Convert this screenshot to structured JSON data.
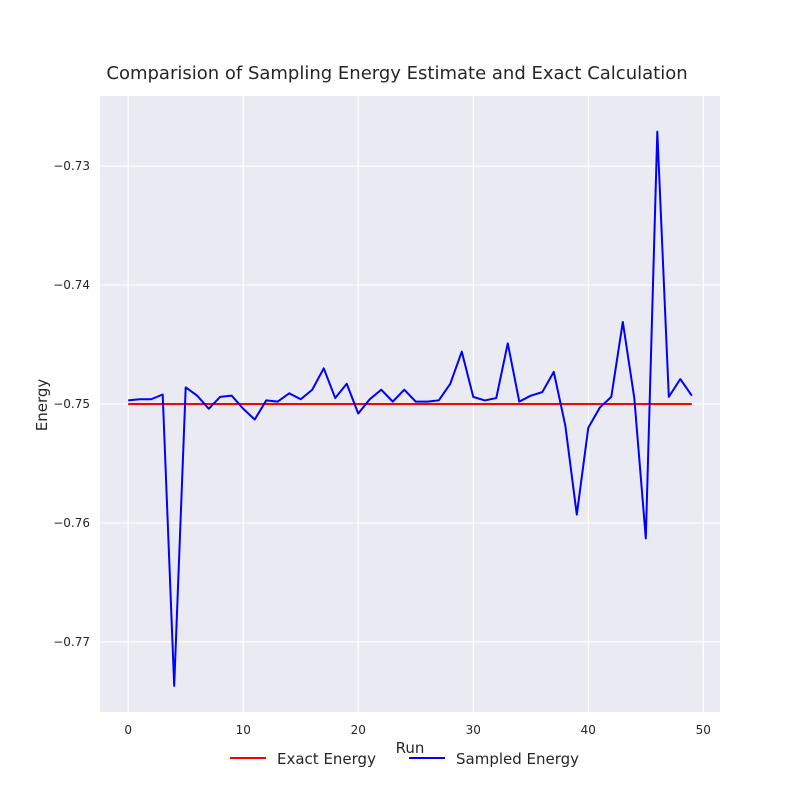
{
  "chart_data": {
    "type": "line",
    "title": "Comparision of Sampling Energy Estimate and Exact Calculation",
    "xlabel": "Run",
    "ylabel": "Energy",
    "xlim": [
      -2.45,
      51.45
    ],
    "ylim": [
      -0.7759,
      -0.7241
    ],
    "xticks": [
      0,
      10,
      20,
      30,
      40,
      50
    ],
    "yticks": [
      -0.77,
      -0.76,
      -0.75,
      -0.74,
      -0.73
    ],
    "ytick_labels": [
      "−0.77",
      "−0.76",
      "−0.75",
      "−0.74",
      "−0.73"
    ],
    "grid": true,
    "legend_position": "bottom-center",
    "x": [
      0,
      1,
      2,
      3,
      4,
      5,
      6,
      7,
      8,
      9,
      10,
      11,
      12,
      13,
      14,
      15,
      16,
      17,
      18,
      19,
      20,
      21,
      22,
      23,
      24,
      25,
      26,
      27,
      28,
      29,
      30,
      31,
      32,
      33,
      34,
      35,
      36,
      37,
      38,
      39,
      40,
      41,
      42,
      43,
      44,
      45,
      46,
      47,
      48,
      49
    ],
    "series": [
      {
        "name": "Exact Energy",
        "color": "#ff0000",
        "values": [
          -0.75,
          -0.75,
          -0.75,
          -0.75,
          -0.75,
          -0.75,
          -0.75,
          -0.75,
          -0.75,
          -0.75,
          -0.75,
          -0.75,
          -0.75,
          -0.75,
          -0.75,
          -0.75,
          -0.75,
          -0.75,
          -0.75,
          -0.75,
          -0.75,
          -0.75,
          -0.75,
          -0.75,
          -0.75,
          -0.75,
          -0.75,
          -0.75,
          -0.75,
          -0.75,
          -0.75,
          -0.75,
          -0.75,
          -0.75,
          -0.75,
          -0.75,
          -0.75,
          -0.75,
          -0.75,
          -0.75,
          -0.75,
          -0.75,
          -0.75,
          -0.75,
          -0.75,
          -0.75,
          -0.75,
          -0.75,
          -0.75,
          -0.75
        ]
      },
      {
        "name": "Sampled Energy",
        "color": "#0000ff",
        "values": [
          -0.7497,
          -0.7496,
          -0.7496,
          -0.7492,
          -0.7737,
          -0.7486,
          -0.7493,
          -0.7504,
          -0.7494,
          -0.7493,
          -0.7504,
          -0.7513,
          -0.7497,
          -0.7498,
          -0.7491,
          -0.7496,
          -0.7488,
          -0.747,
          -0.7495,
          -0.7483,
          -0.7508,
          -0.7496,
          -0.7488,
          -0.7498,
          -0.7488,
          -0.7498,
          -0.7498,
          -0.7497,
          -0.7483,
          -0.7456,
          -0.7494,
          -0.7497,
          -0.7495,
          -0.7449,
          -0.7498,
          -0.7493,
          -0.749,
          -0.7473,
          -0.7518,
          -0.7593,
          -0.752,
          -0.7503,
          -0.7494,
          -0.7431,
          -0.7495,
          -0.7613,
          -0.7271,
          -0.7494,
          -0.7479,
          -0.7493
        ]
      }
    ]
  }
}
